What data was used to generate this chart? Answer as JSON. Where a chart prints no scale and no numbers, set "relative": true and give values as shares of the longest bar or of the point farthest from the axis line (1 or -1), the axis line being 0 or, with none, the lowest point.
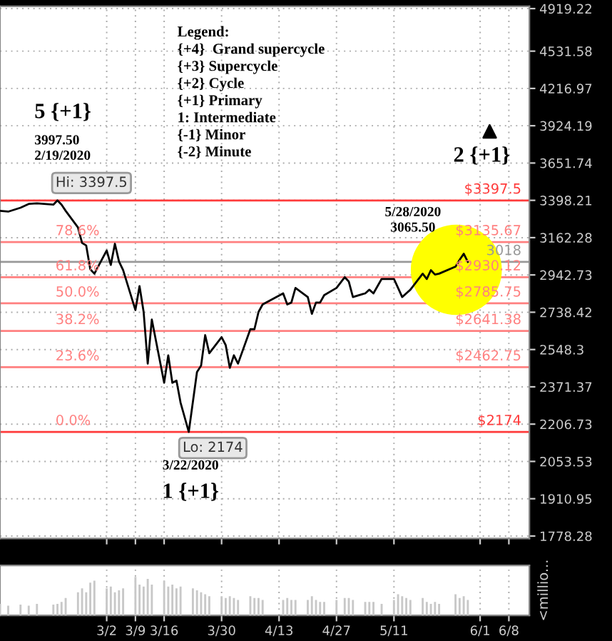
{
  "chart_data": [
    {
      "type": "line",
      "log": true,
      "grid": true,
      "tick_labels": "y",
      "line_style": "solid",
      "marker": "none",
      "x": [
        "2020-02-05",
        "2020-02-07",
        "2020-02-10",
        "2020-02-12",
        "2020-02-14",
        "2020-02-18",
        "2020-02-19",
        "2020-02-20",
        "2020-02-21",
        "2020-02-24",
        "2020-02-25",
        "2020-02-26",
        "2020-02-27",
        "2020-02-28",
        "2020-03-02",
        "2020-03-03",
        "2020-03-04",
        "2020-03-05",
        "2020-03-06",
        "2020-03-09",
        "2020-03-10",
        "2020-03-11",
        "2020-03-12",
        "2020-03-13",
        "2020-03-16",
        "2020-03-17",
        "2020-03-18",
        "2020-03-19",
        "2020-03-20",
        "2020-03-22",
        "2020-03-24",
        "2020-03-25",
        "2020-03-26",
        "2020-03-27",
        "2020-03-30",
        "2020-03-31",
        "2020-04-01",
        "2020-04-02",
        "2020-04-03",
        "2020-04-06",
        "2020-04-07",
        "2020-04-08",
        "2020-04-09",
        "2020-04-14",
        "2020-04-15",
        "2020-04-16",
        "2020-04-17",
        "2020-04-20",
        "2020-04-21",
        "2020-04-22",
        "2020-04-23",
        "2020-04-24",
        "2020-04-27",
        "2020-04-29",
        "2020-04-30",
        "2020-05-01",
        "2020-05-04",
        "2020-05-05",
        "2020-05-06",
        "2020-05-08",
        "2020-05-11",
        "2020-05-12",
        "2020-05-13",
        "2020-05-14",
        "2020-05-15",
        "2020-05-18",
        "2020-05-19",
        "2020-05-20",
        "2020-05-21",
        "2020-05-22",
        "2020-05-26",
        "2020-05-27",
        "2020-05-28",
        "2020-05-29"
      ],
      "series": [
        {
          "color": "#000000",
          "values": [
            3330,
            3325,
            3350,
            3375,
            3378,
            3370,
            3397.5,
            3370,
            3330,
            3225,
            3130,
            3115,
            2975,
            2950,
            3085,
            3000,
            3125,
            3020,
            2970,
            2750,
            2880,
            2740,
            2480,
            2700,
            2390,
            2520,
            2390,
            2400,
            2300,
            2174,
            2440,
            2470,
            2620,
            2530,
            2610,
            2570,
            2460,
            2520,
            2480,
            2650,
            2650,
            2740,
            2780,
            2840,
            2780,
            2790,
            2870,
            2820,
            2730,
            2790,
            2790,
            2830,
            2870,
            2930,
            2905,
            2820,
            2840,
            2860,
            2840,
            2920,
            2920,
            2870,
            2820,
            2840,
            2860,
            2950,
            2920,
            2970,
            2945,
            2950,
            2990,
            3030,
            3065.5,
            3018
          ]
        }
      ],
      "xlim": [
        "2020-02-05",
        "2020-06-13"
      ],
      "xticks": [
        {
          "value": "2020-03-02",
          "label": null
        },
        {
          "value": "2020-03-09",
          "label": null
        },
        {
          "value": "2020-03-16",
          "label": null
        },
        {
          "value": "2020-03-30",
          "label": null
        },
        {
          "value": "2020-04-13",
          "label": null
        },
        {
          "value": "2020-04-27",
          "label": null
        },
        {
          "value": "2020-05-11",
          "label": null
        },
        {
          "value": "2020-06-01",
          "label": null
        },
        {
          "value": "2020-06-08",
          "label": null
        }
      ],
      "ylim": [
        1770,
        4940
      ],
      "yticks": [
        4919.22,
        4531.58,
        4216.97,
        3924.19,
        3651.74,
        3398.21,
        3162.28,
        2942.73,
        2738.42,
        2548.3,
        2371.37,
        2206.73,
        2053.53,
        1910.95,
        1778.28
      ],
      "ref_lines": [
        {
          "axis": "y",
          "value": 3397.5,
          "label": "$3397.5",
          "color": "#ff3b3b"
        },
        {
          "axis": "y",
          "value": 3135.67,
          "label": "$3135.67",
          "color": "#ff8080"
        },
        {
          "axis": "y",
          "value": 2930.12,
          "label": "$2930.12",
          "color": "#ff8080"
        },
        {
          "axis": "y",
          "value": 2785.75,
          "label": "$2785.75",
          "color": "#ff8080"
        },
        {
          "axis": "y",
          "value": 2641.38,
          "label": "$2641.38",
          "color": "#ff8080"
        },
        {
          "axis": "y",
          "value": 2462.75,
          "label": "$2462.75",
          "color": "#ff8080"
        },
        {
          "axis": "y",
          "value": 2174,
          "label": "$2174",
          "color": "#ff3b3b"
        },
        {
          "axis": "y",
          "value": 3018,
          "label": "3018",
          "color": "#999999"
        }
      ],
      "annotations": [
        "Legend:\n{+4}  Grand supercycle\n{+3} Supercycle\n{+2} Cycle\n{+1} Primary\n1: Intermediate\n{-1} Minor\n{-2} Minute",
        "5 {+1}",
        "3997.50",
        "2/19/2020",
        "Hi: 3397.5",
        "5/28/2020",
        "3065.50",
        "Lo: 2174",
        "3/22/2020",
        "1 {+1}",
        "2 {+1}",
        {
          "text": "78.6%",
          "x": "2020-02-19",
          "y": 3135.67
        },
        {
          "text": "61.8%",
          "x": "2020-02-19",
          "y": 2930.12
        },
        {
          "text": "50.0%",
          "x": "2020-02-19",
          "y": 2785.75
        },
        {
          "text": "38.2%",
          "x": "2020-02-19",
          "y": 2641.38
        },
        {
          "text": "23.6%",
          "x": "2020-02-19",
          "y": 2462.75
        },
        {
          "text": "0.0%",
          "x": "2020-02-19",
          "y": 2174
        }
      ]
    },
    {
      "type": "bar",
      "relative": true,
      "grid": true,
      "tick_labels": "x",
      "ylabel": "<millio...",
      "color": "#c8c8c8",
      "x": [
        "2020-02-05",
        "2020-02-07",
        "2020-02-10",
        "2020-02-12",
        "2020-02-14",
        "2020-02-18",
        "2020-02-19",
        "2020-02-20",
        "2020-02-21",
        "2020-02-24",
        "2020-02-25",
        "2020-02-26",
        "2020-02-27",
        "2020-02-28",
        "2020-03-02",
        "2020-03-03",
        "2020-03-04",
        "2020-03-05",
        "2020-03-06",
        "2020-03-09",
        "2020-03-10",
        "2020-03-11",
        "2020-03-12",
        "2020-03-13",
        "2020-03-16",
        "2020-03-17",
        "2020-03-18",
        "2020-03-19",
        "2020-03-20",
        "2020-03-23",
        "2020-03-24",
        "2020-03-25",
        "2020-03-26",
        "2020-03-27",
        "2020-03-30",
        "2020-03-31",
        "2020-04-01",
        "2020-04-02",
        "2020-04-03",
        "2020-04-06",
        "2020-04-07",
        "2020-04-08",
        "2020-04-09",
        "2020-04-14",
        "2020-04-15",
        "2020-04-16",
        "2020-04-17",
        "2020-04-20",
        "2020-04-21",
        "2020-04-22",
        "2020-04-23",
        "2020-04-24",
        "2020-04-27",
        "2020-04-29",
        "2020-04-30",
        "2020-05-01",
        "2020-05-04",
        "2020-05-05",
        "2020-05-06",
        "2020-05-08",
        "2020-05-11",
        "2020-05-12",
        "2020-05-13",
        "2020-05-14",
        "2020-05-15",
        "2020-05-18",
        "2020-05-19",
        "2020-05-20",
        "2020-05-21",
        "2020-05-22",
        "2020-05-26",
        "2020-05-27",
        "2020-05-28",
        "2020-05-29"
      ],
      "values": [
        0.3,
        0.25,
        0.28,
        0.25,
        0.3,
        0.28,
        0.3,
        0.35,
        0.45,
        0.6,
        0.7,
        0.6,
        0.85,
        0.9,
        0.7,
        0.75,
        0.6,
        0.65,
        0.7,
        1,
        0.8,
        0.75,
        0.95,
        0.8,
        0.9,
        0.75,
        0.8,
        0.7,
        0.75,
        0.7,
        0.65,
        0.6,
        0.55,
        0.5,
        0.5,
        0.45,
        0.5,
        0.45,
        0.4,
        0.5,
        0.45,
        0.45,
        0.4,
        0.4,
        0.45,
        0.4,
        0.4,
        0.4,
        0.5,
        0.4,
        0.35,
        0.35,
        0.4,
        0.45,
        0.45,
        0.4,
        0.35,
        0.35,
        0.35,
        0.3,
        0.4,
        0.55,
        0.5,
        0.45,
        0.4,
        0.45,
        0.35,
        0.3,
        0.35,
        0.3,
        0.55,
        0.45,
        0.5,
        0.4
      ],
      "xlim": [
        "2020-02-05",
        "2020-06-13"
      ],
      "xticks": [
        {
          "value": "2020-03-02",
          "label": "3/2"
        },
        {
          "value": "2020-03-09",
          "label": "3/9"
        },
        {
          "value": "2020-03-16",
          "label": "3/16"
        },
        {
          "value": "2020-03-30",
          "label": "3/30"
        },
        {
          "value": "2020-04-13",
          "label": "4/13"
        },
        {
          "value": "2020-04-27",
          "label": "4/27"
        },
        {
          "value": "2020-05-11",
          "label": "5/11"
        },
        {
          "value": "2020-06-01",
          "label": "6/1"
        },
        {
          "value": "2020-06-08",
          "label": "6/8"
        }
      ]
    }
  ]
}
